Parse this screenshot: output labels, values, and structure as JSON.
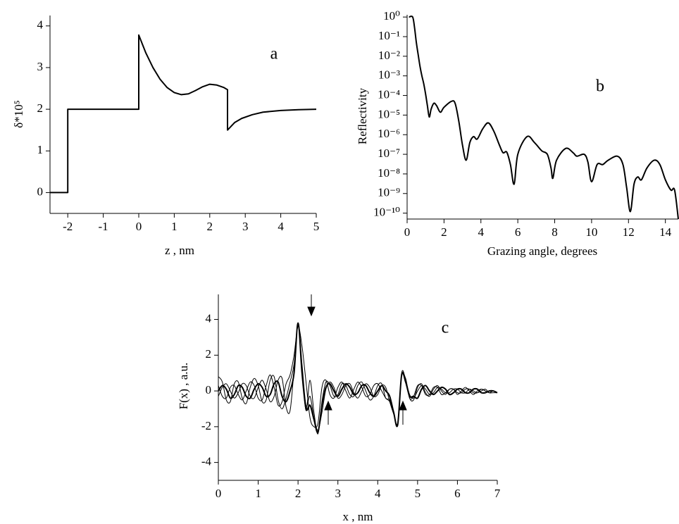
{
  "chart_data": [
    {
      "type": "line",
      "annotation": "a",
      "x_label": "z , nm",
      "y_label": "δ*10⁵",
      "xlim": [
        -2.5,
        5
      ],
      "ylim": [
        -0.5,
        4.25
      ],
      "xticks": [
        -2,
        -1,
        0,
        1,
        2,
        3,
        4,
        5
      ],
      "yticks": [
        0,
        1,
        2,
        3,
        4
      ],
      "x": [
        -2.5,
        -2,
        -2,
        0,
        0,
        0.2,
        0.4,
        0.6,
        0.8,
        1.0,
        1.2,
        1.4,
        1.6,
        1.8,
        2.0,
        2.2,
        2.4,
        2.5,
        2.5,
        2.7,
        2.9,
        3.2,
        3.5,
        4.0,
        4.5,
        5.0
      ],
      "series": [
        {
          "color": "#000000",
          "values": [
            0,
            0,
            2,
            2,
            3.78,
            3.35,
            3.0,
            2.72,
            2.52,
            2.4,
            2.35,
            2.37,
            2.45,
            2.54,
            2.6,
            2.58,
            2.52,
            2.47,
            1.5,
            1.68,
            1.78,
            1.87,
            1.93,
            1.97,
            1.99,
            2.0
          ]
        }
      ]
    },
    {
      "type": "line",
      "annotation": "b",
      "x_label": "Grazing angle, degrees",
      "y_label": "Reflectivity",
      "y_scale": "log",
      "xlim": [
        0,
        14.7
      ],
      "ylim": [
        5e-11,
        1.3
      ],
      "xticks": [
        0,
        2,
        4,
        6,
        8,
        10,
        12,
        14
      ],
      "yticks": [
        {
          "value": 1e-10,
          "label": "10⁻¹⁰"
        },
        {
          "value": 1e-09,
          "label": "10⁻⁹"
        },
        {
          "value": 1e-08,
          "label": "10⁻⁸"
        },
        {
          "value": 1e-07,
          "label": "10⁻⁷"
        },
        {
          "value": 1e-06,
          "label": "10⁻⁶"
        },
        {
          "value": 1e-05,
          "label": "10⁻⁵"
        },
        {
          "value": 0.0001,
          "label": "10⁻⁴"
        },
        {
          "value": 0.001,
          "label": "10⁻³"
        },
        {
          "value": 0.01,
          "label": "10⁻²"
        },
        {
          "value": 0.1,
          "label": "10⁻¹"
        },
        {
          "value": 1,
          "label": "10⁰"
        }
      ],
      "x": [
        0.1,
        0.3,
        0.4,
        0.5,
        0.6,
        0.7,
        0.8,
        0.9,
        1.0,
        1.1,
        1.2,
        1.3,
        1.45,
        1.6,
        1.8,
        2.0,
        2.4,
        2.6,
        2.8,
        3.0,
        3.2,
        3.4,
        3.6,
        3.8,
        4.1,
        4.4,
        4.7,
        5.0,
        5.2,
        5.4,
        5.6,
        5.8,
        6.0,
        6.5,
        6.9,
        7.3,
        7.6,
        7.8,
        7.9,
        8.1,
        8.6,
        9.0,
        9.2,
        9.6,
        9.8,
        10.0,
        10.3,
        10.6,
        10.9,
        11.4,
        11.7,
        11.9,
        12.1,
        12.3,
        12.5,
        12.7,
        13.0,
        13.4,
        13.7,
        14.0,
        14.3,
        14.5,
        14.7
      ],
      "series": [
        {
          "color": "#000000",
          "values": [
            1,
            1,
            0.3,
            0.05,
            0.012,
            0.003,
            0.001,
            0.0004,
            0.00012,
            3e-05,
            8e-06,
            2e-05,
            4e-05,
            3e-05,
            1.4e-05,
            2.5e-05,
            5e-05,
            4e-05,
            5e-06,
            3e-07,
            5e-08,
            4e-07,
            8e-07,
            6e-07,
            2e-06,
            4e-06,
            1.5e-06,
            3e-07,
            1.2e-07,
            1.3e-07,
            3e-08,
            3e-09,
            1e-07,
            8e-07,
            4e-07,
            1.5e-07,
            1e-07,
            2e-08,
            6e-09,
            5e-08,
            2e-07,
            1.2e-07,
            8e-08,
            1e-07,
            4e-08,
            4e-09,
            3e-08,
            3e-08,
            5e-08,
            8e-08,
            3e-08,
            2e-09,
            1.2e-10,
            3e-09,
            7e-09,
            5e-09,
            2e-08,
            5e-08,
            3e-08,
            5e-09,
            1.5e-09,
            1.5e-09,
            5e-11
          ]
        }
      ]
    },
    {
      "type": "line",
      "annotation": "c",
      "x_label": "x , nm",
      "y_label": "F(x) , a.u.",
      "xlim": [
        0,
        7
      ],
      "ylim": [
        -5,
        5.4
      ],
      "xticks": [
        0,
        1,
        2,
        3,
        4,
        5,
        6,
        7
      ],
      "yticks": [
        -4,
        -2,
        0,
        2,
        4
      ],
      "x": [
        0,
        0.1,
        0.2,
        0.3,
        0.4,
        0.5,
        0.6,
        0.7,
        0.8,
        0.9,
        1.0,
        1.1,
        1.2,
        1.3,
        1.4,
        1.5,
        1.6,
        1.7,
        1.8,
        1.9,
        2.0,
        2.1,
        2.2,
        2.3,
        2.4,
        2.5,
        2.6,
        2.7,
        2.8,
        2.9,
        3.0,
        3.1,
        3.2,
        3.3,
        3.4,
        3.5,
        3.6,
        3.7,
        3.8,
        3.9,
        4.0,
        4.1,
        4.2,
        4.3,
        4.4,
        4.5,
        4.6,
        4.7,
        4.8,
        4.9,
        5.0,
        5.1,
        5.2,
        5.3,
        5.4,
        5.5,
        5.6,
        5.7,
        5.8,
        5.9,
        6.0,
        6.1,
        6.2,
        6.3,
        6.4,
        6.5,
        6.6,
        6.7,
        6.8,
        6.9,
        7.0
      ],
      "series": [
        {
          "color": "#000000",
          "values": [
            0,
            0.3,
            0.1,
            -0.4,
            -0.2,
            0.3,
            0.2,
            -0.3,
            -0.4,
            0.1,
            0.4,
            0.2,
            -0.3,
            -0.2,
            0.4,
            0.5,
            -0.3,
            -0.6,
            0.0,
            1.0,
            3.8,
            1.0,
            -1.0,
            -0.8,
            -1.6,
            -2.3,
            -0.8,
            0.2,
            0.4,
            0.0,
            -0.3,
            0.1,
            0.4,
            0.2,
            -0.2,
            -0.1,
            0.3,
            0.3,
            -0.1,
            -0.3,
            0.0,
            0.3,
            0.0,
            -0.3,
            -1.2,
            -1.9,
            0.9,
            0.5,
            -0.3,
            -0.3,
            -0.4,
            0.1,
            0.3,
            0.0,
            -0.2,
            0.0,
            0.2,
            0.1,
            -0.2,
            -0.1,
            0.1,
            0.1,
            -0.1,
            -0.1,
            0.1,
            0.1,
            -0.1,
            -0.1,
            0.0,
            0.0,
            -0.1
          ]
        },
        {
          "color": "#000000",
          "values": [
            0.8,
            0.5,
            -0.5,
            -0.6,
            0.4,
            0.5,
            -0.4,
            -0.7,
            0.2,
            0.7,
            0.3,
            -0.6,
            -0.5,
            0.6,
            0.8,
            -0.5,
            -1.0,
            -0.4,
            0.5,
            1.5,
            3.7,
            1.2,
            -1.1,
            0.6,
            -1.2,
            -2.4,
            -0.6,
            0.5,
            0.3,
            -0.3,
            -0.2,
            0.4,
            0.3,
            -0.2,
            -0.3,
            0.3,
            0.5,
            0.0,
            -0.5,
            -0.3,
            0.3,
            0.4,
            -0.4,
            -0.5,
            -1.2,
            -1.8,
            0.8,
            0.7,
            -0.4,
            -0.5,
            0.2,
            0.4,
            -0.1,
            -0.3,
            0.1,
            0.3,
            0.0,
            -0.2,
            0.1,
            0.1,
            -0.2,
            0.0,
            0.2,
            0.0,
            -0.2,
            0.0,
            0.1,
            0.0,
            -0.1,
            0.0,
            -0.1
          ]
        },
        {
          "color": "#000000",
          "values": [
            0.3,
            -0.3,
            -0.4,
            0.2,
            0.3,
            -0.2,
            -0.5,
            0.0,
            0.5,
            0.3,
            -0.4,
            -0.5,
            0.3,
            0.9,
            0.2,
            -0.8,
            -0.6,
            0.4,
            0.9,
            2.0,
            3.6,
            2.5,
            0.5,
            -1.5,
            -2.0,
            -1.8,
            0.2,
            0.6,
            -0.2,
            -0.4,
            0.2,
            0.5,
            0.0,
            -0.4,
            0.1,
            0.5,
            0.2,
            -0.3,
            -0.2,
            0.3,
            0.4,
            0.0,
            -0.4,
            -0.6,
            -1.2,
            -1.9,
            1.0,
            0.6,
            -0.4,
            -0.3,
            0.3,
            0.3,
            -0.2,
            -0.2,
            0.2,
            0.2,
            -0.2,
            -0.1,
            0.1,
            0.1,
            -0.1,
            -0.1,
            0.1,
            0.1,
            -0.1,
            -0.1,
            0.1,
            0.0,
            -0.1,
            0.0,
            -0.1
          ]
        },
        {
          "color": "#000000",
          "values": [
            -0.3,
            0.2,
            0.4,
            0.0,
            -0.4,
            -0.1,
            0.4,
            0.3,
            -0.3,
            -0.4,
            0.2,
            0.6,
            0.1,
            -0.6,
            -0.3,
            0.6,
            0.7,
            -0.9,
            -1.1,
            1.2,
            3.8,
            1.5,
            -0.8,
            -0.3,
            -1.5,
            -2.2,
            -1.2,
            0.1,
            0.5,
            0.2,
            -0.4,
            -0.2,
            0.3,
            0.4,
            -0.1,
            -0.4,
            0.0,
            0.4,
            0.2,
            -0.3,
            -0.2,
            0.3,
            0.2,
            -0.6,
            -1.3,
            -1.9,
            0.9,
            0.6,
            -0.2,
            -0.4,
            0.0,
            0.3,
            0.1,
            -0.2,
            -0.1,
            0.2,
            0.1,
            -0.1,
            -0.1,
            0.1,
            0.1,
            -0.1,
            -0.1,
            0.1,
            0.0,
            -0.1,
            0.0,
            0.1,
            -0.1,
            -0.1,
            -0.1
          ]
        }
      ]
    }
  ]
}
